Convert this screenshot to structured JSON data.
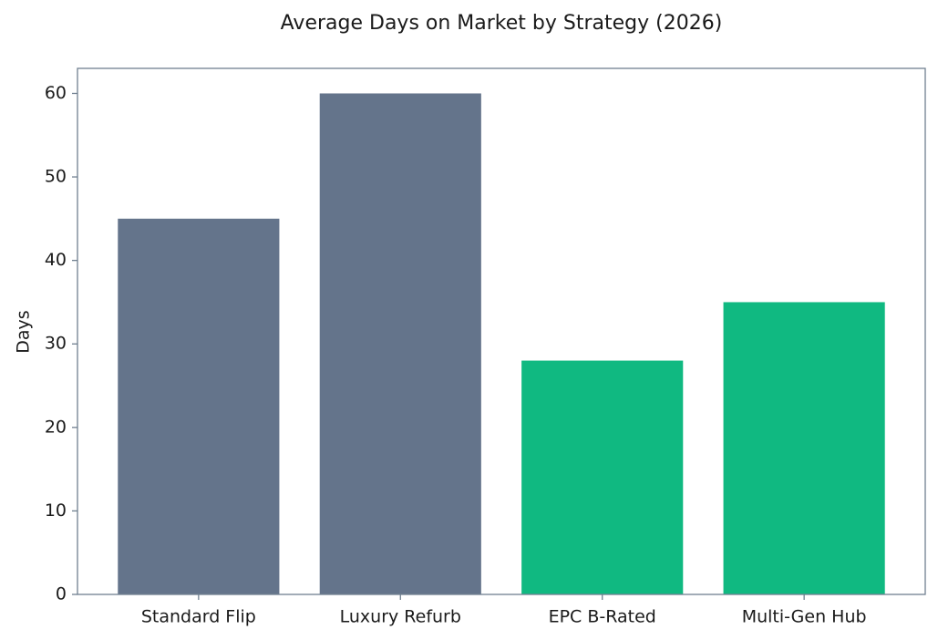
{
  "chart_data": {
    "type": "bar",
    "title": "Average Days on Market by Strategy (2026)",
    "ylabel": "Days",
    "categories": [
      "Standard Flip",
      "Luxury Refurb",
      "EPC B-Rated",
      "Multi-Gen Hub"
    ],
    "values": [
      45,
      60,
      28,
      35
    ],
    "colors": [
      "#64748b",
      "#64748b",
      "#10b981",
      "#10b981"
    ],
    "ylim": [
      0,
      63
    ],
    "yticks": [
      0,
      10,
      20,
      30,
      40,
      50,
      60
    ],
    "grid": false
  }
}
